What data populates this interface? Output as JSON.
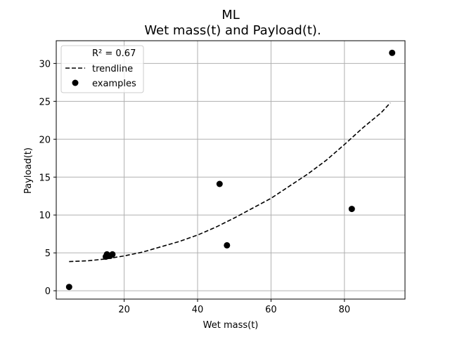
{
  "chart_data": {
    "type": "scatter",
    "title": "ML",
    "subtitle": "Wet mass(t) and Payload(t).",
    "xlabel": "Wet mass(t)",
    "ylabel": "Payload(t)",
    "xlim": [
      1.5,
      96.5
    ],
    "ylim": [
      -1.1,
      33.0
    ],
    "xticks": [
      20,
      40,
      60,
      80
    ],
    "yticks": [
      0,
      5,
      10,
      15,
      20,
      25,
      30
    ],
    "grid": true,
    "legend_position": "top-left",
    "legend": {
      "r2_label": "R² = 0.67",
      "trendline_label": "trendline",
      "examples_label": "examples"
    },
    "series": [
      {
        "name": "examples",
        "points": [
          {
            "x": 5.0,
            "y": 0.5
          },
          {
            "x": 15.0,
            "y": 4.5
          },
          {
            "x": 15.3,
            "y": 4.8
          },
          {
            "x": 16.2,
            "y": 4.6
          },
          {
            "x": 16.8,
            "y": 4.8
          },
          {
            "x": 46.0,
            "y": 14.1
          },
          {
            "x": 48.0,
            "y": 6.0
          },
          {
            "x": 82.0,
            "y": 10.8
          },
          {
            "x": 93.0,
            "y": 31.4
          }
        ]
      },
      {
        "name": "trendline",
        "style": "dashed",
        "points": [
          {
            "x": 5,
            "y": 3.85
          },
          {
            "x": 10,
            "y": 3.95
          },
          {
            "x": 15,
            "y": 4.2
          },
          {
            "x": 20,
            "y": 4.6
          },
          {
            "x": 25,
            "y": 5.1
          },
          {
            "x": 30,
            "y": 5.8
          },
          {
            "x": 35,
            "y": 6.5
          },
          {
            "x": 40,
            "y": 7.35
          },
          {
            "x": 45,
            "y": 8.4
          },
          {
            "x": 50,
            "y": 9.6
          },
          {
            "x": 55,
            "y": 10.9
          },
          {
            "x": 60,
            "y": 12.2
          },
          {
            "x": 65,
            "y": 13.8
          },
          {
            "x": 70,
            "y": 15.4
          },
          {
            "x": 75,
            "y": 17.2
          },
          {
            "x": 80,
            "y": 19.3
          },
          {
            "x": 85,
            "y": 21.5
          },
          {
            "x": 90,
            "y": 23.5
          },
          {
            "x": 92.5,
            "y": 24.8
          }
        ]
      }
    ],
    "colors": {
      "points": "#000000",
      "trendline": "#000000",
      "grid": "#b0b0b0",
      "axes": "#000000"
    }
  }
}
